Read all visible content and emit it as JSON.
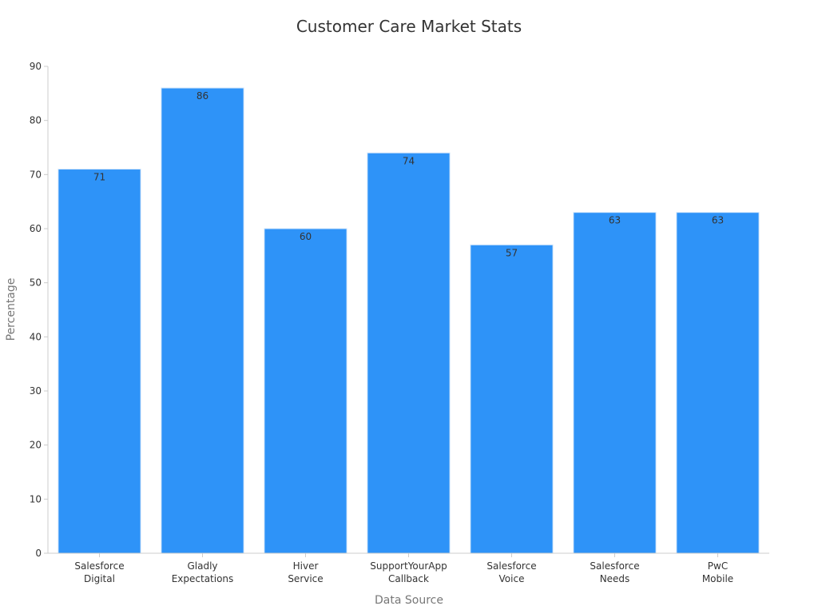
{
  "chart_data": {
    "type": "bar",
    "title": "Customer Care Market Stats",
    "xlabel": "Data Source",
    "ylabel": "Percentage",
    "categories": [
      [
        "Salesforce",
        "Digital"
      ],
      [
        "Gladly",
        "Expectations"
      ],
      [
        "Hiver",
        "Service"
      ],
      [
        "SupportYourApp",
        "Callback"
      ],
      [
        "Salesforce",
        "Voice"
      ],
      [
        "Salesforce",
        "Needs"
      ],
      [
        "PwC",
        "Mobile"
      ]
    ],
    "values": [
      71,
      86,
      60,
      74,
      57,
      63,
      63
    ],
    "ylim": [
      0,
      90
    ],
    "yticks": [
      0,
      10,
      20,
      30,
      40,
      50,
      60,
      70,
      80,
      90
    ],
    "grid": false,
    "legend": "none",
    "colors": {
      "bar": "#2e93f8",
      "bar_stroke": "#cfe4fb",
      "axis": "#cccccc",
      "text": "#333333",
      "axis_title": "#777777"
    }
  }
}
